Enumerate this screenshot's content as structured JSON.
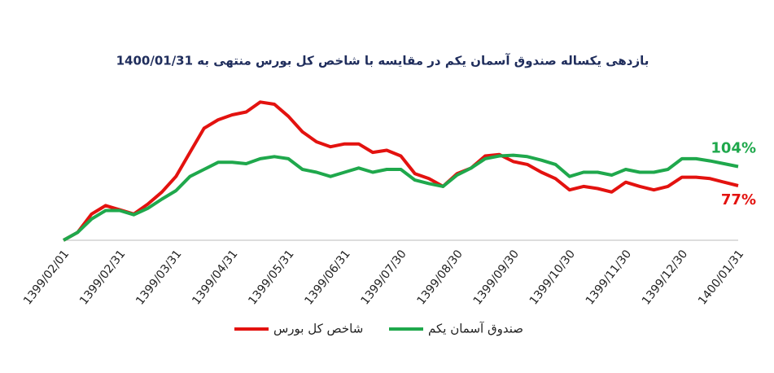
{
  "chart_data": {
    "type": "line",
    "title": "بازدهی یکساله صندوق آسمان یکم در مقایسه با شاخص کل بورس منتهی به 1400/01/31",
    "categories": [
      "1399/02/01",
      null,
      null,
      null,
      "1399/02/31",
      null,
      null,
      null,
      "1399/03/31",
      null,
      null,
      null,
      "1399/04/31",
      null,
      null,
      null,
      "1399/05/31",
      null,
      null,
      null,
      "1399/06/31",
      null,
      null,
      null,
      "1399/07/30",
      null,
      null,
      null,
      "1399/08/30",
      null,
      null,
      null,
      "1399/09/30",
      null,
      null,
      null,
      "1399/10/30",
      null,
      null,
      null,
      "1399/11/30",
      null,
      null,
      null,
      "1399/12/30",
      null,
      null,
      null,
      "1400/01/31"
    ],
    "series": [
      {
        "name": "شاخص کل بورس",
        "color": "#e3120f",
        "values": [
          0,
          11,
          37,
          49,
          43,
          37,
          51,
          68,
          90,
          124,
          158,
          170,
          177,
          181,
          195,
          192,
          175,
          153,
          139,
          132,
          136,
          136,
          124,
          127,
          119,
          94,
          87,
          76,
          94,
          102,
          119,
          121,
          111,
          107,
          96,
          87,
          71,
          76,
          73,
          68,
          82,
          76,
          71,
          76,
          89,
          89,
          87,
          82,
          77
        ],
        "value_labels": [
          null,
          null,
          null,
          null,
          null,
          null,
          null,
          null,
          null,
          null,
          null,
          null,
          null,
          null,
          null,
          null,
          null,
          null,
          null,
          null,
          null,
          null,
          null,
          null,
          null,
          null,
          null,
          null,
          null,
          null,
          null,
          null,
          null,
          null,
          null,
          null,
          null,
          null,
          null,
          null,
          null,
          null,
          null,
          null,
          null,
          null,
          null,
          null,
          "77%"
        ]
      },
      {
        "name": "صندوق آسمان یکم",
        "color": "#1fa84c",
        "values": [
          0,
          11,
          30,
          42,
          42,
          36,
          45,
          58,
          70,
          90,
          100,
          110,
          110,
          108,
          115,
          118,
          115,
          100,
          96,
          90,
          96,
          102,
          96,
          100,
          100,
          85,
          80,
          76,
          92,
          102,
          115,
          119,
          120,
          118,
          113,
          107,
          90,
          96,
          96,
          92,
          100,
          96,
          96,
          100,
          115,
          115,
          112,
          108,
          104
        ],
        "value_labels": [
          null,
          null,
          null,
          null,
          null,
          null,
          null,
          null,
          null,
          null,
          null,
          null,
          null,
          null,
          null,
          null,
          null,
          null,
          null,
          null,
          null,
          null,
          null,
          null,
          null,
          null,
          null,
          null,
          null,
          null,
          null,
          null,
          null,
          null,
          null,
          null,
          null,
          null,
          null,
          null,
          null,
          null,
          null,
          null,
          null,
          null,
          null,
          null,
          "104%"
        ]
      }
    ],
    "ylim": [
      0,
      200
    ]
  }
}
